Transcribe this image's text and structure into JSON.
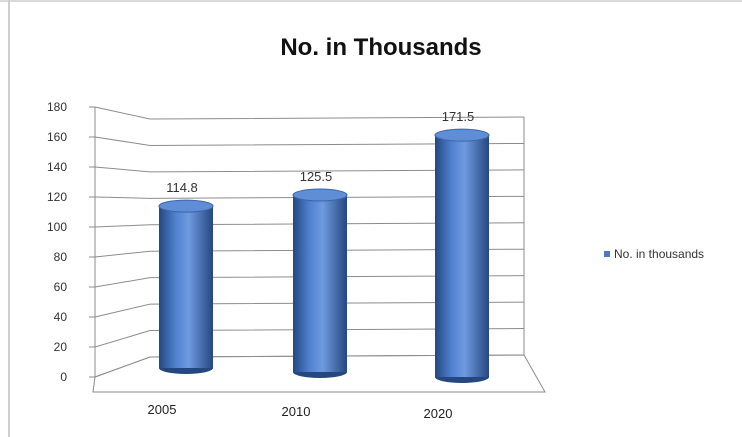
{
  "chart_data": {
    "type": "bar",
    "title": "No. in Thousands",
    "xlabel": "",
    "ylabel": "",
    "categories": [
      "2005",
      "2010",
      "2020"
    ],
    "series": [
      {
        "name": "No. in thousands",
        "values": [
          114.8,
          125.5,
          171.5
        ]
      }
    ],
    "data_labels": [
      "114.8",
      "125.5",
      "171.5"
    ],
    "ylim": [
      0,
      180
    ],
    "yticks": [
      0,
      20,
      40,
      60,
      80,
      100,
      120,
      140,
      160,
      180
    ],
    "grid": true,
    "legend_position": "right",
    "style": "3d-cylinder",
    "colors": {
      "bar": "#4a78c2",
      "bar_dark": "#24477f",
      "bar_light": "#8fb0e6",
      "grid": "#8c8c8c"
    }
  }
}
